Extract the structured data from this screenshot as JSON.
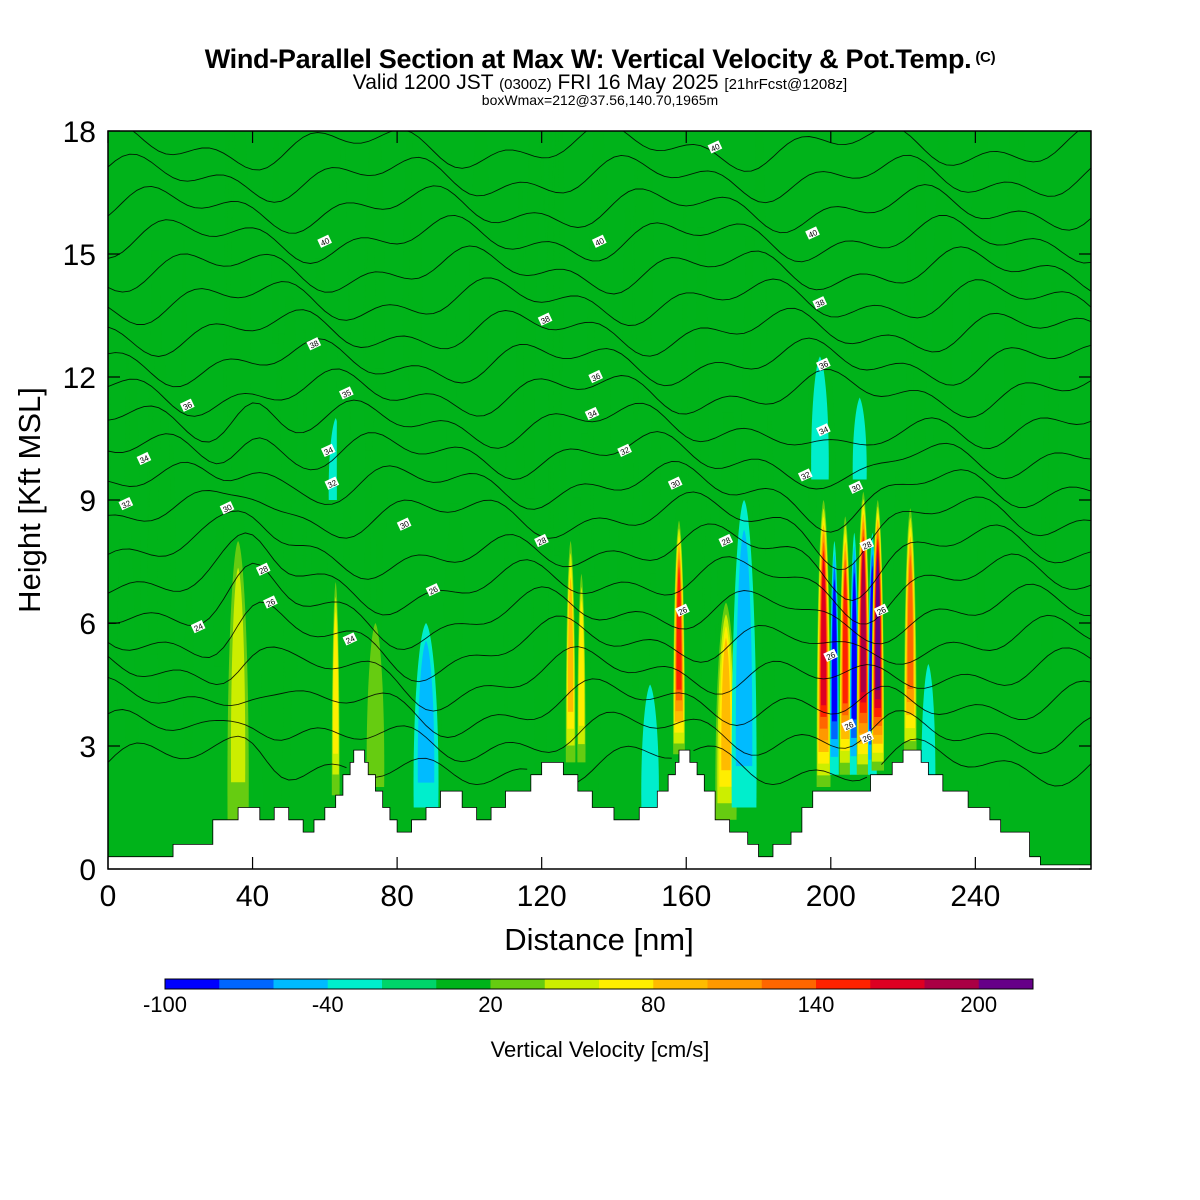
{
  "header": {
    "title": "Wind-Parallel Section at Max W: Vertical Velocity & Pot.Temp.",
    "copyright": "(C)",
    "valid_prefix": "Valid 1200 JST",
    "utc": "(0300Z)",
    "valid_date": "FRI 16 May 2025",
    "forecast": "[21hrFcst@1208z]",
    "box_info": "boxWmax=212@37.56,140.70,1965m"
  },
  "chart_data": {
    "type": "heatmap",
    "xlabel": "Distance [nm]",
    "ylabel": "Height [Kft MSL]",
    "xlim": [
      0,
      272
    ],
    "ylim": [
      0,
      18
    ],
    "xticks": [
      0,
      40,
      80,
      120,
      160,
      200,
      240
    ],
    "yticks": [
      0,
      3,
      6,
      9,
      12,
      15,
      18
    ],
    "background_level_cm_s": 0,
    "colorbar": {
      "title": "Vertical Velocity [cm/s]",
      "levels": [
        -100,
        -80,
        -60,
        -40,
        -20,
        0,
        20,
        40,
        60,
        80,
        100,
        120,
        140,
        160,
        180,
        200,
        220
      ],
      "tick_labels": [
        "-100",
        "-40",
        "20",
        "80",
        "140",
        "200"
      ],
      "tick_values": [
        -100,
        -40,
        20,
        80,
        140,
        200
      ],
      "colors": [
        "#0000ff",
        "#0066ff",
        "#00bbff",
        "#00eecc",
        "#00d56a",
        "#00b31a",
        "#66cc11",
        "#ccee00",
        "#ffee00",
        "#ffbb00",
        "#ff9900",
        "#ff6600",
        "#ff2200",
        "#dd0022",
        "#aa0044",
        "#660088"
      ]
    },
    "terrain_kft": [
      [
        0,
        0.3
      ],
      [
        18,
        0.3
      ],
      [
        18,
        0.6
      ],
      [
        29,
        0.6
      ],
      [
        29,
        1.2
      ],
      [
        36,
        1.2
      ],
      [
        36,
        1.5
      ],
      [
        42,
        1.5
      ],
      [
        42,
        1.2
      ],
      [
        46,
        1.2
      ],
      [
        46,
        1.5
      ],
      [
        50,
        1.5
      ],
      [
        50,
        1.2
      ],
      [
        54,
        1.2
      ],
      [
        54,
        0.9
      ],
      [
        57,
        0.9
      ],
      [
        57,
        1.2
      ],
      [
        60,
        1.2
      ],
      [
        60,
        1.5
      ],
      [
        63,
        1.5
      ],
      [
        63,
        1.8
      ],
      [
        65,
        1.8
      ],
      [
        65,
        2.3
      ],
      [
        67,
        2.3
      ],
      [
        67,
        2.6
      ],
      [
        68,
        2.6
      ],
      [
        68,
        2.9
      ],
      [
        71,
        2.9
      ],
      [
        71,
        2.6
      ],
      [
        72,
        2.6
      ],
      [
        72,
        2.3
      ],
      [
        74,
        2.3
      ],
      [
        74,
        1.9
      ],
      [
        76,
        1.9
      ],
      [
        76,
        1.5
      ],
      [
        78,
        1.5
      ],
      [
        78,
        1.2
      ],
      [
        80,
        1.2
      ],
      [
        80,
        0.9
      ],
      [
        84,
        0.9
      ],
      [
        84,
        1.2
      ],
      [
        88,
        1.2
      ],
      [
        88,
        1.5
      ],
      [
        92,
        1.5
      ],
      [
        92,
        1.9
      ],
      [
        98,
        1.9
      ],
      [
        98,
        1.5
      ],
      [
        102,
        1.5
      ],
      [
        102,
        1.2
      ],
      [
        106,
        1.2
      ],
      [
        106,
        1.5
      ],
      [
        110,
        1.5
      ],
      [
        110,
        1.9
      ],
      [
        117,
        1.9
      ],
      [
        117,
        2.3
      ],
      [
        120,
        2.3
      ],
      [
        120,
        2.6
      ],
      [
        126,
        2.6
      ],
      [
        126,
        2.3
      ],
      [
        130,
        2.3
      ],
      [
        130,
        1.9
      ],
      [
        134,
        1.9
      ],
      [
        134,
        1.5
      ],
      [
        140,
        1.5
      ],
      [
        140,
        1.2
      ],
      [
        147,
        1.2
      ],
      [
        147,
        1.5
      ],
      [
        152,
        1.5
      ],
      [
        152,
        1.9
      ],
      [
        155,
        1.9
      ],
      [
        155,
        2.3
      ],
      [
        157,
        2.3
      ],
      [
        157,
        2.6
      ],
      [
        158,
        2.6
      ],
      [
        158,
        2.9
      ],
      [
        161,
        2.9
      ],
      [
        161,
        2.6
      ],
      [
        163,
        2.6
      ],
      [
        163,
        2.3
      ],
      [
        165,
        2.3
      ],
      [
        165,
        1.9
      ],
      [
        168,
        1.9
      ],
      [
        168,
        1.2
      ],
      [
        172,
        1.2
      ],
      [
        172,
        0.9
      ],
      [
        177,
        0.9
      ],
      [
        177,
        0.6
      ],
      [
        180,
        0.6
      ],
      [
        180,
        0.3
      ],
      [
        184,
        0.3
      ],
      [
        184,
        0.6
      ],
      [
        189,
        0.6
      ],
      [
        189,
        0.9
      ],
      [
        192,
        0.9
      ],
      [
        192,
        1.5
      ],
      [
        195,
        1.5
      ],
      [
        195,
        1.9
      ],
      [
        211,
        1.9
      ],
      [
        211,
        2.3
      ],
      [
        217,
        2.3
      ],
      [
        217,
        2.6
      ],
      [
        220,
        2.6
      ],
      [
        220,
        2.9
      ],
      [
        225,
        2.9
      ],
      [
        225,
        2.6
      ],
      [
        227,
        2.6
      ],
      [
        227,
        2.3
      ],
      [
        231,
        2.3
      ],
      [
        231,
        1.9
      ],
      [
        238,
        1.9
      ],
      [
        238,
        1.5
      ],
      [
        244,
        1.5
      ],
      [
        244,
        1.2
      ],
      [
        247,
        1.2
      ],
      [
        247,
        0.9
      ],
      [
        255,
        0.9
      ],
      [
        255,
        0.3
      ],
      [
        258,
        0.3
      ],
      [
        258,
        0.1
      ],
      [
        272,
        0.1
      ]
    ],
    "theta_contour_labels": [
      {
        "text": "40",
        "x": 168,
        "y": 17.6
      },
      {
        "text": "40",
        "x": 60,
        "y": 15.3
      },
      {
        "text": "40",
        "x": 136,
        "y": 15.3
      },
      {
        "text": "40",
        "x": 195,
        "y": 15.5
      },
      {
        "text": "38",
        "x": 121,
        "y": 13.4
      },
      {
        "text": "38",
        "x": 197,
        "y": 13.8
      },
      {
        "text": "38",
        "x": 57,
        "y": 12.8
      },
      {
        "text": "36",
        "x": 135,
        "y": 12.0
      },
      {
        "text": "36",
        "x": 198,
        "y": 12.3
      },
      {
        "text": "36",
        "x": 22,
        "y": 11.3
      },
      {
        "text": "35",
        "x": 66,
        "y": 11.6
      },
      {
        "text": "34",
        "x": 134,
        "y": 11.1
      },
      {
        "text": "34",
        "x": 198,
        "y": 10.7
      },
      {
        "text": "34",
        "x": 10,
        "y": 10.0
      },
      {
        "text": "34",
        "x": 61,
        "y": 10.2
      },
      {
        "text": "32",
        "x": 143,
        "y": 10.2
      },
      {
        "text": "32",
        "x": 193,
        "y": 9.6
      },
      {
        "text": "32",
        "x": 5,
        "y": 8.9
      },
      {
        "text": "32",
        "x": 62,
        "y": 9.4
      },
      {
        "text": "30",
        "x": 157,
        "y": 9.4
      },
      {
        "text": "30",
        "x": 207,
        "y": 9.3
      },
      {
        "text": "30",
        "x": 33,
        "y": 8.8
      },
      {
        "text": "30",
        "x": 82,
        "y": 8.4
      },
      {
        "text": "28",
        "x": 120,
        "y": 8.0
      },
      {
        "text": "28",
        "x": 171,
        "y": 8.0
      },
      {
        "text": "28",
        "x": 210,
        "y": 7.9
      },
      {
        "text": "28",
        "x": 43,
        "y": 7.3
      },
      {
        "text": "26",
        "x": 45,
        "y": 6.5
      },
      {
        "text": "26",
        "x": 90,
        "y": 6.8
      },
      {
        "text": "26",
        "x": 159,
        "y": 6.3
      },
      {
        "text": "26",
        "x": 214,
        "y": 6.3
      },
      {
        "text": "26",
        "x": 200,
        "y": 5.2
      },
      {
        "text": "24",
        "x": 25,
        "y": 5.9
      },
      {
        "text": "24",
        "x": 67,
        "y": 5.6
      },
      {
        "text": "26",
        "x": 205,
        "y": 3.5
      },
      {
        "text": "26",
        "x": 210,
        "y": 3.2
      }
    ],
    "vertical_velocity_features": [
      {
        "x": 198,
        "ybot": 2.0,
        "ytop": 9.0,
        "w": 3.0,
        "peak": 170
      },
      {
        "x": 201,
        "ybot": 2.3,
        "ytop": 8.0,
        "w": 1.6,
        "peak": -90
      },
      {
        "x": 204,
        "ybot": 2.3,
        "ytop": 8.6,
        "w": 2.4,
        "peak": 150
      },
      {
        "x": 206.5,
        "ybot": 2.3,
        "ytop": 8.2,
        "w": 1.6,
        "peak": -95
      },
      {
        "x": 209,
        "ybot": 2.3,
        "ytop": 9.2,
        "w": 2.8,
        "peak": 180
      },
      {
        "x": 211.5,
        "ybot": 2.3,
        "ytop": 8.2,
        "w": 1.6,
        "peak": -100
      },
      {
        "x": 213,
        "ybot": 2.4,
        "ytop": 9.0,
        "w": 2.6,
        "peak": 200
      },
      {
        "x": 222,
        "ybot": 2.8,
        "ytop": 8.8,
        "w": 2.6,
        "peak": 120
      },
      {
        "x": 158,
        "ybot": 2.8,
        "ytop": 8.5,
        "w": 2.4,
        "peak": 140
      },
      {
        "x": 171,
        "ybot": 1.2,
        "ytop": 6.5,
        "w": 5.0,
        "peak": 80
      },
      {
        "x": 128,
        "ybot": 2.6,
        "ytop": 8.0,
        "w": 1.8,
        "peak": 95
      },
      {
        "x": 131,
        "ybot": 2.6,
        "ytop": 7.2,
        "w": 1.4,
        "peak": 60
      },
      {
        "x": 63,
        "ybot": 1.8,
        "ytop": 7.0,
        "w": 1.3,
        "peak": 70
      },
      {
        "x": 36,
        "ybot": 1.2,
        "ytop": 8.0,
        "w": 5.0,
        "peak": 40
      },
      {
        "x": 74,
        "ybot": 2.0,
        "ytop": 6.0,
        "w": 4.0,
        "peak": 35
      },
      {
        "x": 88,
        "ybot": 1.5,
        "ytop": 6.0,
        "w": 6.0,
        "peak": -40
      },
      {
        "x": 176,
        "ybot": 1.5,
        "ytop": 9.0,
        "w": 6.0,
        "peak": -40
      },
      {
        "x": 197,
        "ybot": 9.5,
        "ytop": 12.5,
        "w": 4.0,
        "peak": -35
      },
      {
        "x": 208,
        "ybot": 9.5,
        "ytop": 11.5,
        "w": 3.0,
        "peak": -30
      },
      {
        "x": 63,
        "ybot": 9.0,
        "ytop": 11.0,
        "w": 3.0,
        "peak": -30
      },
      {
        "x": 150,
        "ybot": 1.5,
        "ytop": 4.5,
        "w": 4.0,
        "peak": -30
      },
      {
        "x": 227,
        "ybot": 1.9,
        "ytop": 5.0,
        "w": 3.0,
        "peak": -25
      },
      {
        "x": 5,
        "ybot": 4.0,
        "ytop": 9.0,
        "w": 4.0,
        "peak": 8
      },
      {
        "x": 245,
        "ybot": 1.0,
        "ytop": 7.0,
        "w": 8.0,
        "peak": 8
      },
      {
        "x": 120,
        "ybot": 8.5,
        "ytop": 16.5,
        "w": 3.0,
        "peak": 8
      },
      {
        "x": 95,
        "ybot": 9.0,
        "ytop": 17.5,
        "w": 2.0,
        "peak": 8
      },
      {
        "x": 65,
        "ybot": 9.0,
        "ytop": 18.0,
        "w": 2.5,
        "peak": 8
      },
      {
        "x": 180,
        "ybot": 10.0,
        "ytop": 16.0,
        "w": 4.0,
        "peak": 8
      }
    ],
    "grid": false,
    "legend": "colorbar-bottom"
  }
}
